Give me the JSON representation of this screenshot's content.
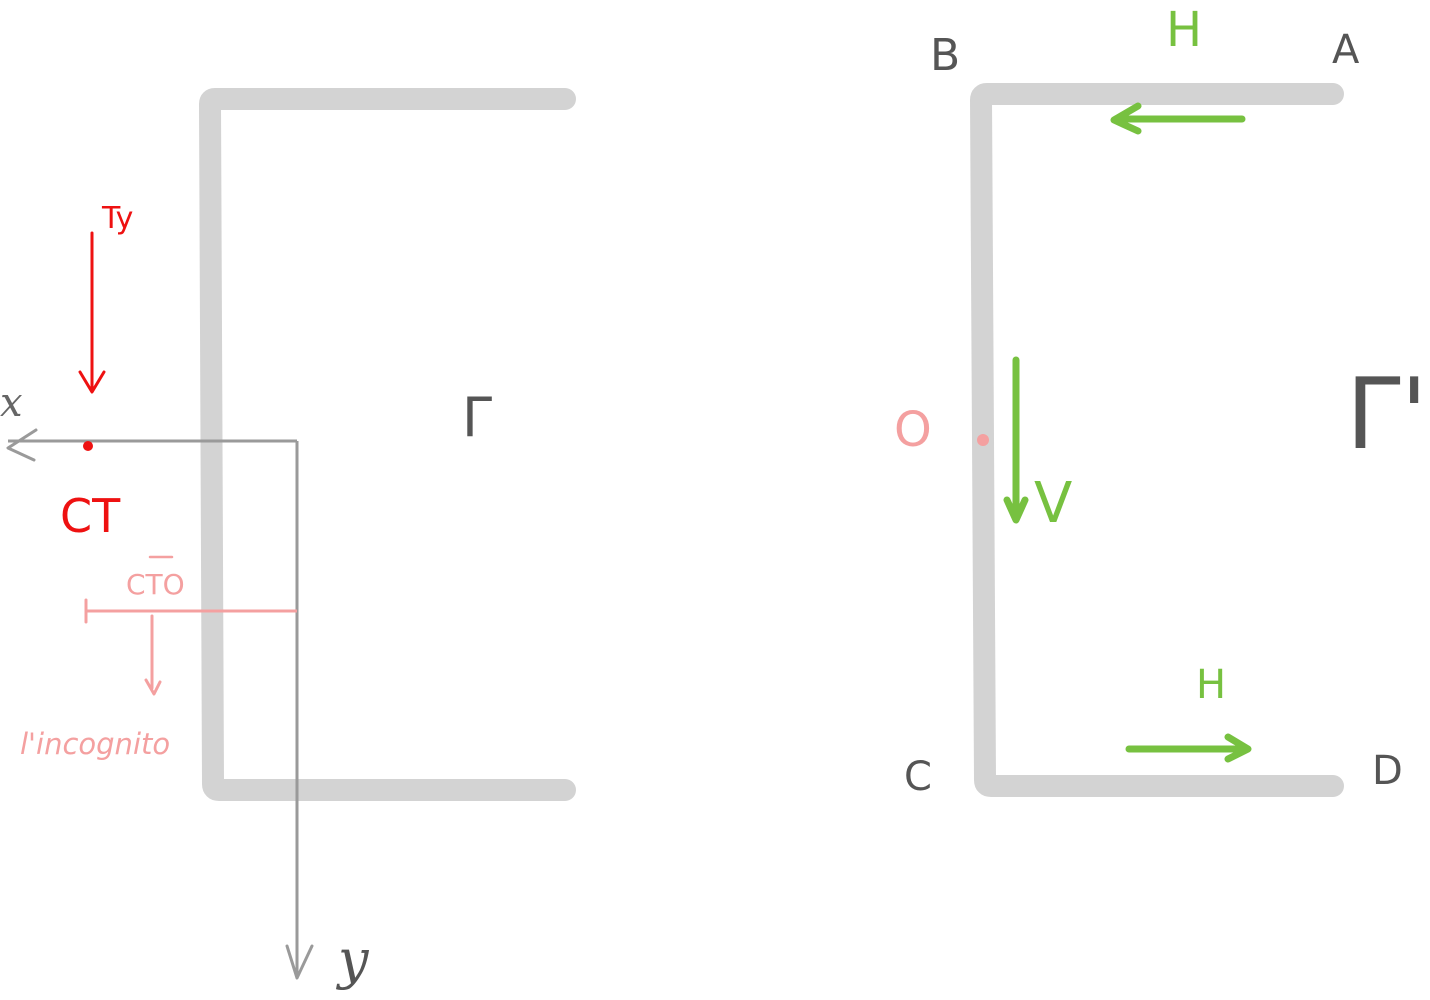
{
  "colors": {
    "section_stroke": "#d3d3d3",
    "axis": "#9a9a9a",
    "label_dark": "#555555",
    "red": "#ee1111",
    "pink": "#f4a0a0",
    "green": "#77c140"
  },
  "left_panel": {
    "axis_x_label": "x",
    "axis_y_label": "y",
    "force_label": "Ty",
    "shear_center_label": "CT",
    "distance_label": "CTO",
    "unknown_note": "l'incognito",
    "contour_label": "Γ"
  },
  "right_panel": {
    "point_a": "A",
    "point_b": "B",
    "point_c": "C",
    "point_d": "D",
    "origin_label": "O",
    "flange_force_top": "H",
    "web_force": "V",
    "flange_force_bottom": "H",
    "contour_label": "Γ'"
  }
}
